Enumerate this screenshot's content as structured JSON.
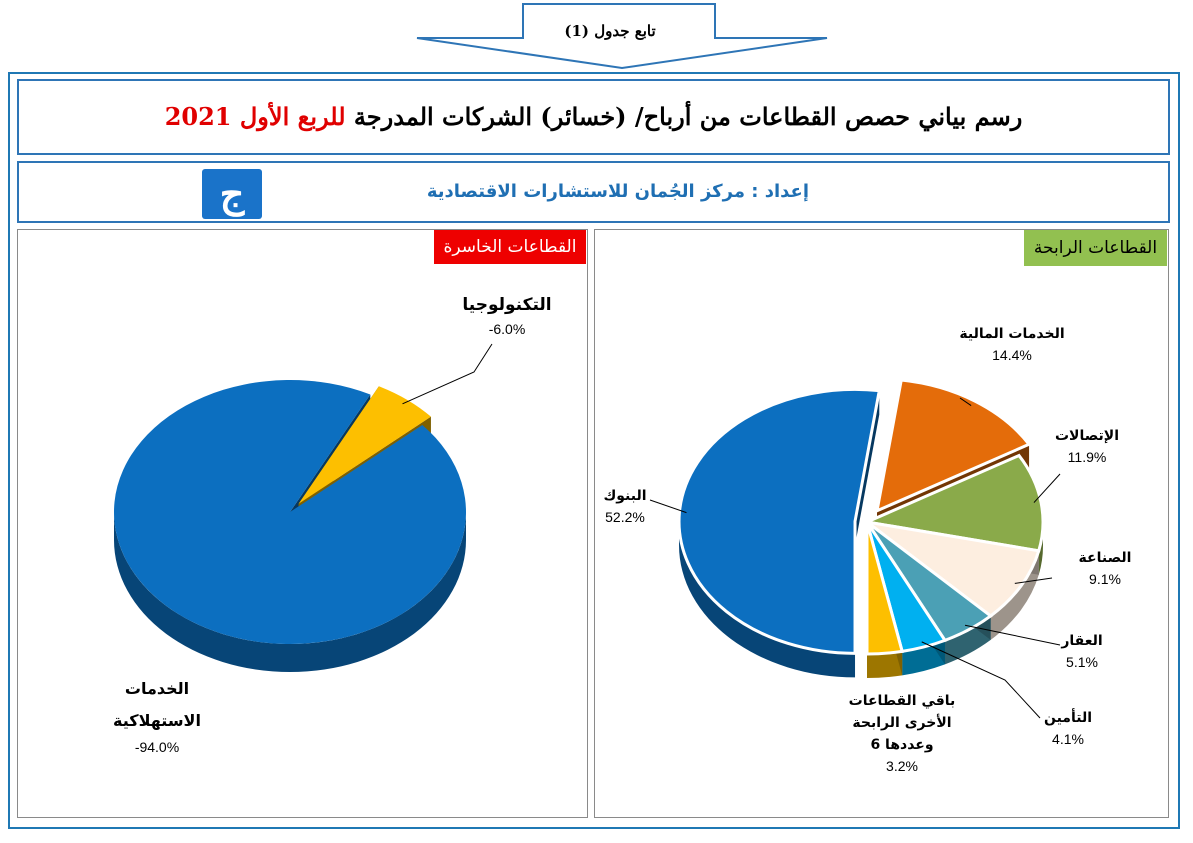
{
  "header_arrow": {
    "text": "تابع جدول (1)"
  },
  "title": {
    "main": "رسم بياني حصص القطاعات من أرباح/ (خسائر) الشركات المدرجة",
    "red": "للربع الأول",
    "year": "2021"
  },
  "credit": {
    "text": "إعداد : مركز الجُمان للاستشارات الاقتصادية"
  },
  "panels": {
    "loss_label": "القطاعات الخاسرة",
    "gain_label": "القطاعات الرابحة"
  },
  "colors": {
    "frame": "#2e75b6",
    "loss_badge": "#ee0000",
    "gain_badge": "#92c050"
  },
  "chart_data": [
    {
      "type": "pie",
      "title": "القطاعات الخاسرة",
      "slices": [
        {
          "label": "الخدمات الاستهلاكية",
          "label_lines": [
            "الخدمات",
            "الاستهلاكية"
          ],
          "value": -94.0,
          "display": "-94.0%",
          "color": "#0c6fc0"
        },
        {
          "label": "التكنولوجيا",
          "label_lines": [
            "التكنولوجيا"
          ],
          "value": -6.0,
          "display": "-6.0%",
          "color": "#fdbf00"
        }
      ]
    },
    {
      "type": "pie",
      "title": "القطاعات الرابحة",
      "slices": [
        {
          "label": "البنوك",
          "label_lines": [
            "البنوك"
          ],
          "value": 52.2,
          "display": "52.2%",
          "color": "#0c6fc0"
        },
        {
          "label": "الخدمات المالية",
          "label_lines": [
            "الخدمات المالية"
          ],
          "value": 14.4,
          "display": "14.4%",
          "color": "#e46c0a"
        },
        {
          "label": "الإتصالات",
          "label_lines": [
            "الإتصالات"
          ],
          "value": 11.9,
          "display": "11.9%",
          "color": "#8aaa4a"
        },
        {
          "label": "الصناعة",
          "label_lines": [
            "الصناعة"
          ],
          "value": 9.1,
          "display": "9.1%",
          "color": "#fdeee0"
        },
        {
          "label": "العقار",
          "label_lines": [
            "العقار"
          ],
          "value": 5.1,
          "display": "5.1%",
          "color": "#4ba0b5"
        },
        {
          "label": "التأمين",
          "label_lines": [
            "التأمين"
          ],
          "value": 4.1,
          "display": "4.1%",
          "color": "#00b0f0"
        },
        {
          "label": "باقي القطاعات الأخرى الرابحة وعددها 6",
          "label_lines": [
            "باقي القطاعات",
            "الأخرى الرابحة",
            "وعددها 6"
          ],
          "value": 3.2,
          "display": "3.2%",
          "color": "#fdbf00"
        }
      ]
    }
  ]
}
